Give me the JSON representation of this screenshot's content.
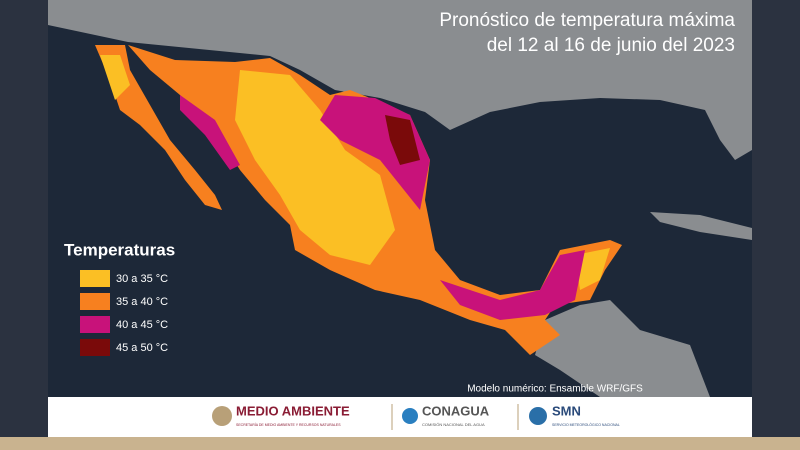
{
  "header": {
    "title_line1": "Pronóstico de temperatura máxima",
    "title_line2": "del 12 al 16 de junio del 2023"
  },
  "legend": {
    "title": "Temperaturas",
    "items": [
      {
        "label": "30 a 35 °C",
        "color": "#fbbf24"
      },
      {
        "label": "35 a 40 °C",
        "color": "#f7801f"
      },
      {
        "label": "40 a 45 °C",
        "color": "#c8127a"
      },
      {
        "label": "45 a 50 °C",
        "color": "#7a0a0a"
      }
    ]
  },
  "note": "Modelo numérico: Ensamble WRF/GFS",
  "footer": {
    "logos": [
      {
        "name": "MEDIO AMBIENTE",
        "subtitle": "SECRETARÍA DE MEDIO AMBIENTE Y RECURSOS NATURALES"
      },
      {
        "name": "CONAGUA",
        "subtitle": "COMISIÓN NACIONAL DEL AGUA"
      },
      {
        "name": "SMN",
        "subtitle": "SERVICIO METEOROLÓGICO NACIONAL"
      }
    ]
  }
}
